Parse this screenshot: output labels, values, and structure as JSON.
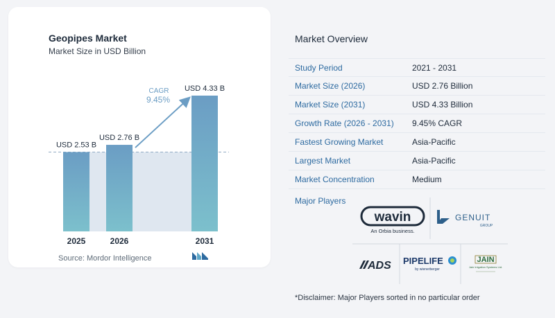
{
  "chart_data": {
    "type": "bar",
    "title": "Geopipes Market",
    "subtitle": "Market Size in USD Billion",
    "categories": [
      "2025",
      "2026",
      "2031"
    ],
    "values": [
      2.53,
      2.76,
      4.33
    ],
    "value_labels": [
      "USD 2.53 B",
      "USD 2.76 B",
      "USD 4.33 B"
    ],
    "cagr_label": "CAGR",
    "cagr_value": "9.45%",
    "colors": {
      "bar_top": "#6b9dc4",
      "bar_bottom": "#7cc0cc",
      "band": "#dfe7f0",
      "arrow": "#6b9dc4",
      "cagr_text": "#6b9dc4"
    }
  },
  "source": "Source:  Mordor Intelligence",
  "overview": {
    "title": "Market Overview",
    "rows": [
      {
        "label": "Study Period",
        "value": "2021 - 2031"
      },
      {
        "label": "Market Size (2026)",
        "value": "USD 2.76 Billion"
      },
      {
        "label": "Market Size (2031)",
        "value": "USD 4.33 Billion"
      },
      {
        "label": "Growth Rate (2026 - 2031)",
        "value": "9.45% CAGR"
      },
      {
        "label": "Fastest Growing Market",
        "value": "Asia-Pacific"
      },
      {
        "label": "Largest Market",
        "value": "Asia-Pacific"
      },
      {
        "label": "Market Concentration",
        "value": "Medium"
      }
    ]
  },
  "players": {
    "title": "Major Players",
    "logos": [
      {
        "name": "wavin",
        "text": "wavin",
        "tagline": "An Orbia business."
      },
      {
        "name": "genuit",
        "text": "GENUIT",
        "tagline": "GROUP"
      },
      {
        "name": "ads",
        "text": "ADS"
      },
      {
        "name": "pipelife",
        "text": "PIPELIFE",
        "tagline": "by wienerberger"
      },
      {
        "name": "jain",
        "text": "JAIN",
        "tagline": "Jain Irrigation Systems Ltd."
      }
    ]
  },
  "disclaimer": "*Disclaimer: Major Players sorted in no particular order"
}
